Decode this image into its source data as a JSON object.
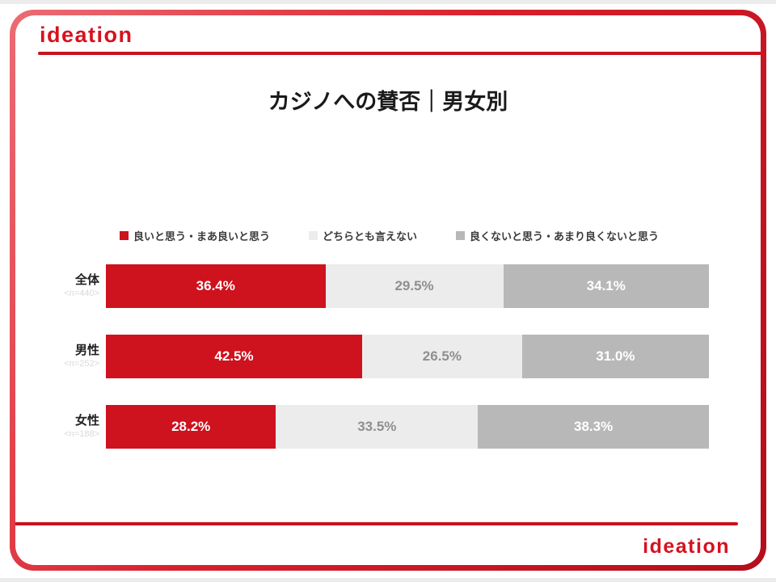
{
  "brand": {
    "logo_top": "ideation",
    "logo_bottom": "ideation",
    "accent_color": "#ce121e"
  },
  "title": "カジノへの賛否｜男女別",
  "chart_data": {
    "type": "bar",
    "variant": "horizontal-stacked",
    "title": "カジノへの賛否｜男女別",
    "categories": [
      "全体",
      "男性",
      "女性"
    ],
    "category_notes": [
      "<n=440>",
      "<n=252>",
      "<n=188>"
    ],
    "series": [
      {
        "name": "良いと思う・まあ良いと思う",
        "color": "#ce121e",
        "text_color": "#ffffff",
        "values": [
          36.4,
          42.5,
          28.2
        ]
      },
      {
        "name": "どちらとも言えない",
        "color": "#ececec",
        "text_color": "#8f8f8f",
        "values": [
          29.5,
          26.5,
          33.5
        ]
      },
      {
        "name": "良くないと思う・あまり良くないと思う",
        "color": "#b8b8b8",
        "text_color": "#ffffff",
        "values": [
          34.1,
          31.0,
          38.3
        ]
      }
    ],
    "xlim": [
      0,
      100
    ],
    "value_suffix": "%",
    "value_decimals": 1,
    "legend_position": "top",
    "grid": false
  }
}
